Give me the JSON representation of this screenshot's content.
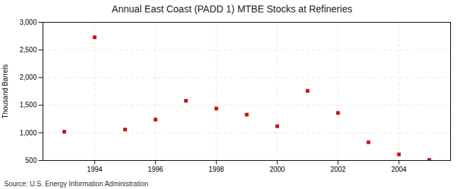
{
  "chart_data": {
    "type": "scatter",
    "title": "Annual East Coast (PADD 1) MTBE Stocks at Refineries",
    "ylabel": "Thousand Barrels",
    "source": "Source: U.S. Energy Information Administration",
    "x": [
      1993,
      1994,
      1995,
      1996,
      1997,
      1998,
      1999,
      2000,
      2001,
      2002,
      2003,
      2004,
      2005
    ],
    "values": [
      1020,
      2730,
      1060,
      1240,
      1580,
      1440,
      1330,
      1120,
      1760,
      1360,
      830,
      610,
      510
    ],
    "color": "#cc1111",
    "marker": "square",
    "xlim": [
      1992.3,
      2005.7
    ],
    "xticks": [
      1994,
      1996,
      1998,
      2000,
      2002,
      2004
    ],
    "ylim": [
      500,
      3000
    ],
    "yticks": [
      500,
      {
        "value": 1000,
        "label": "1,000"
      },
      {
        "value": 1500,
        "label": "1,500"
      },
      {
        "value": 2000,
        "label": "2,000"
      },
      {
        "value": 2500,
        "label": "2,500"
      },
      {
        "value": 3000,
        "label": "3,000"
      }
    ],
    "grid": true
  }
}
